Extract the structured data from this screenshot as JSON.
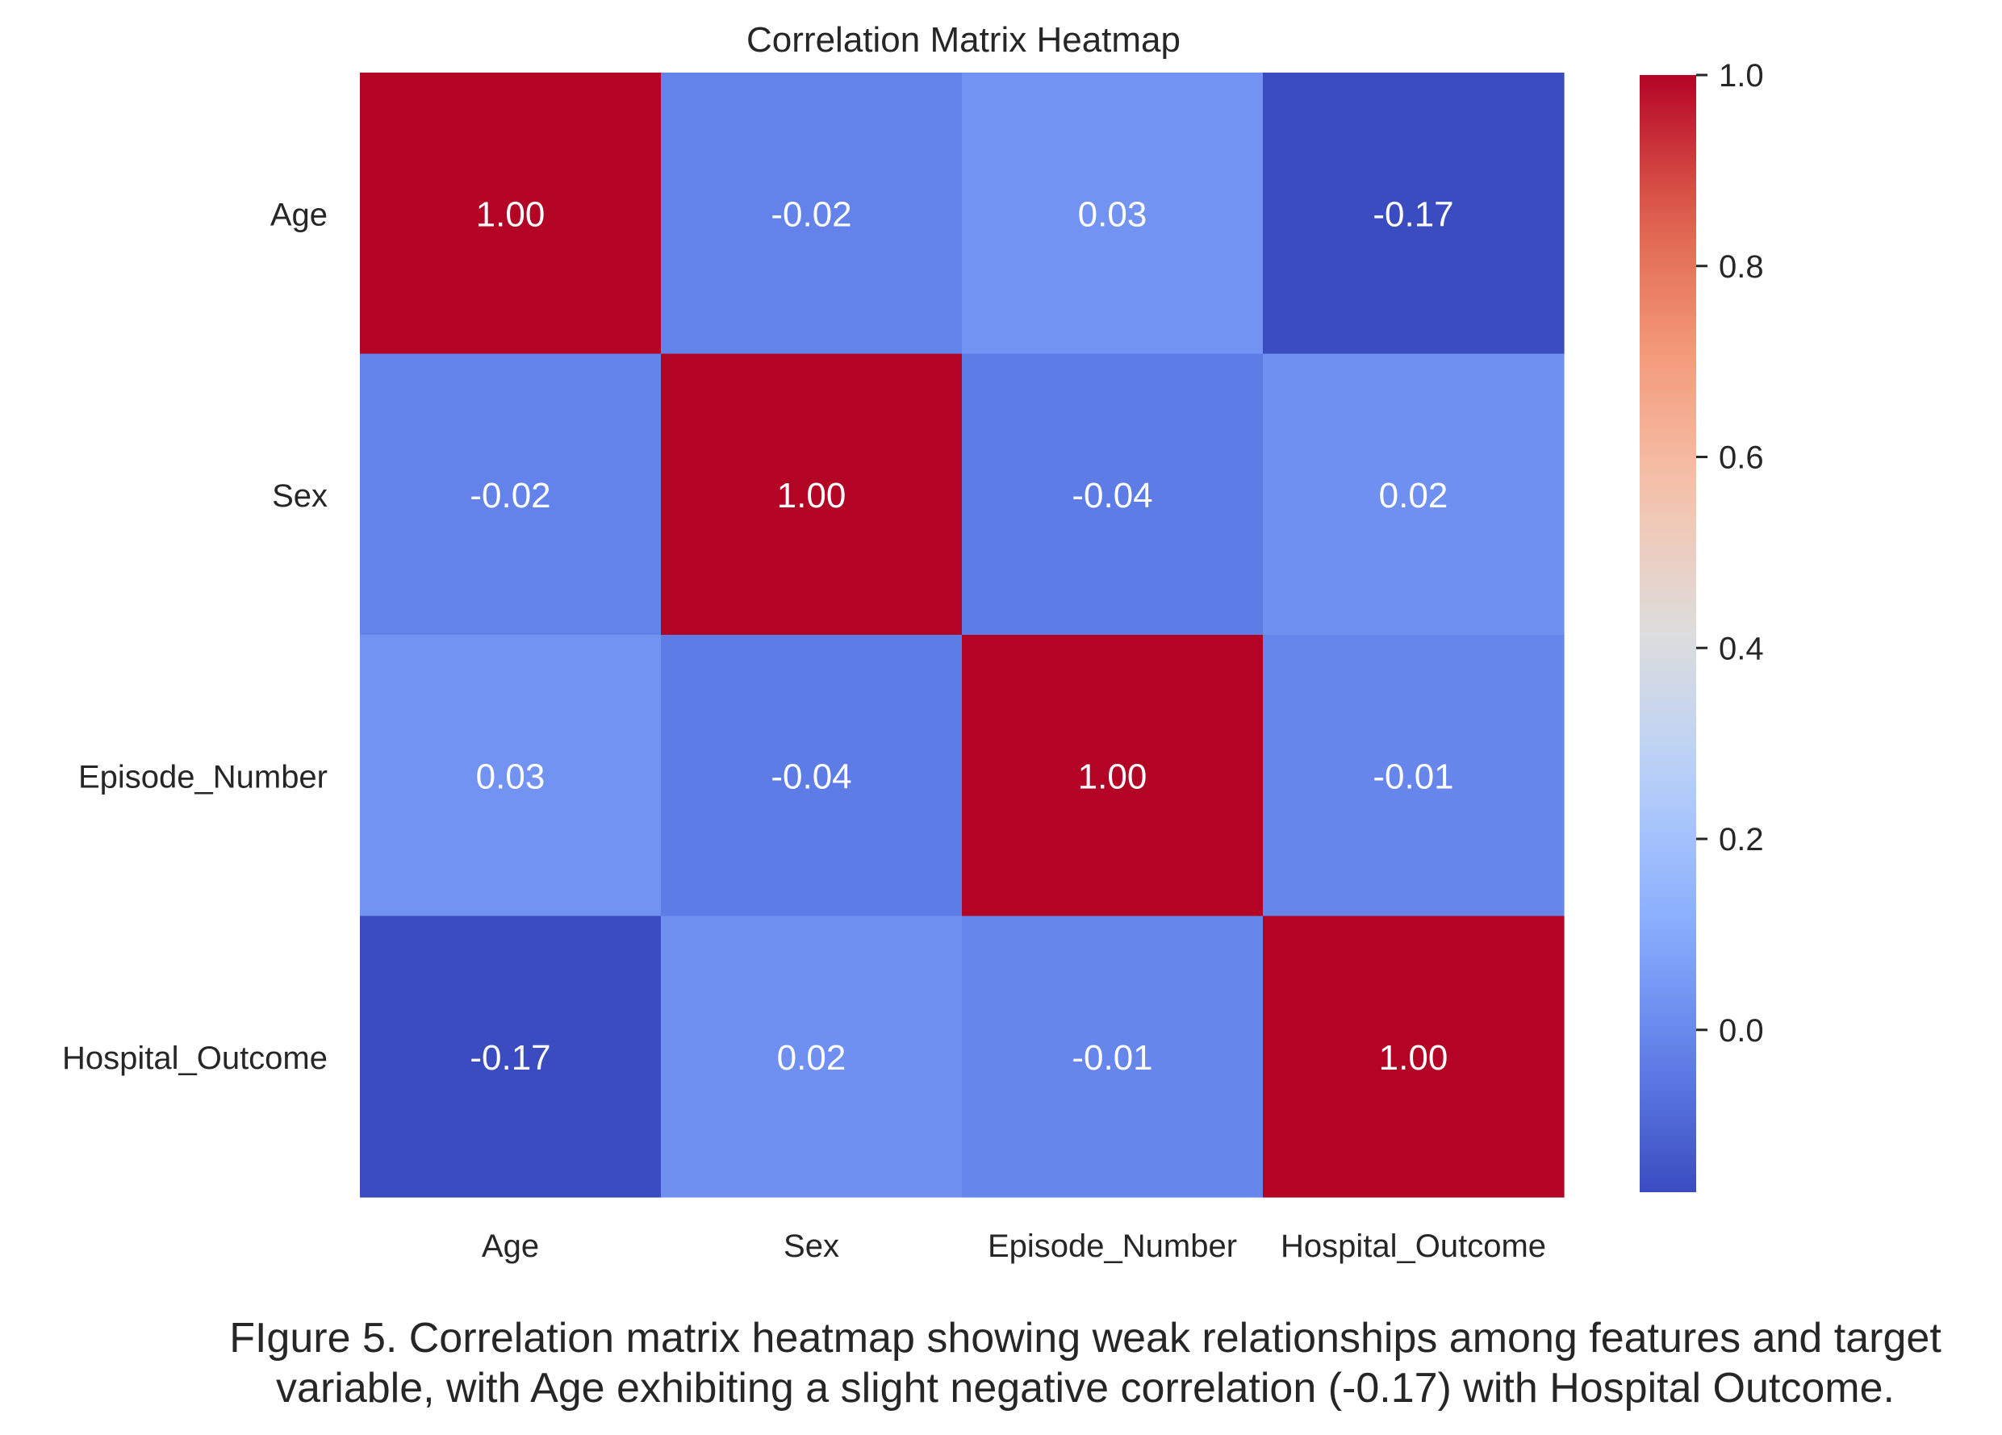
{
  "chart_data": {
    "type": "heatmap",
    "title": "Correlation Matrix Heatmap",
    "rows": [
      "Age",
      "Sex",
      "Episode_Number",
      "Hospital_Outcome"
    ],
    "columns": [
      "Age",
      "Sex",
      "Episode_Number",
      "Hospital_Outcome"
    ],
    "values": [
      [
        1.0,
        -0.02,
        0.03,
        -0.17
      ],
      [
        -0.02,
        1.0,
        -0.04,
        0.02
      ],
      [
        0.03,
        -0.04,
        1.0,
        -0.01
      ],
      [
        -0.17,
        0.02,
        -0.01,
        1.0
      ]
    ],
    "value_format": "0.00",
    "colormap": "coolwarm",
    "colorbar": {
      "min": -0.17,
      "max": 1.0,
      "ticks": [
        0.0,
        0.2,
        0.4,
        0.6,
        0.8,
        1.0
      ],
      "tick_labels": [
        "0.0",
        "0.2",
        "0.4",
        "0.6",
        "0.8",
        "1.0"
      ]
    },
    "annotation_color": "#ffffff"
  },
  "caption": {
    "line1": "FIgure 5. Correlation matrix heatmap showing weak relationships among features and target",
    "line2": "variable, with Age exhibiting a slight negative correlation (-0.17) with Hospital Outcome."
  }
}
